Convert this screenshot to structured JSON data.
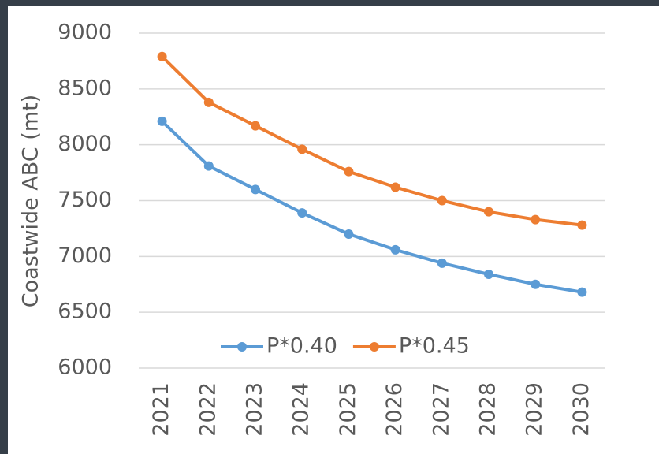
{
  "chart_data": {
    "type": "line",
    "y_label": "Coastwide ABC (mt)",
    "categories": [
      "2021",
      "2022",
      "2023",
      "2024",
      "2025",
      "2026",
      "2027",
      "2028",
      "2029",
      "2030"
    ],
    "series": [
      {
        "name": "P*0.40",
        "color": "#5b9bd5",
        "values": [
          8210,
          7810,
          7600,
          7390,
          7200,
          7060,
          6940,
          6840,
          6750,
          6680
        ]
      },
      {
        "name": "P*0.45",
        "color": "#ed7d31",
        "values": [
          8790,
          8380,
          8170,
          7960,
          7760,
          7620,
          7500,
          7400,
          7330,
          7280
        ]
      }
    ],
    "ylim": [
      6000,
      9000
    ],
    "yticks": [
      6000,
      6500,
      7000,
      7500,
      8000,
      8500,
      9000
    ],
    "grid": true,
    "legend": "bottom"
  }
}
